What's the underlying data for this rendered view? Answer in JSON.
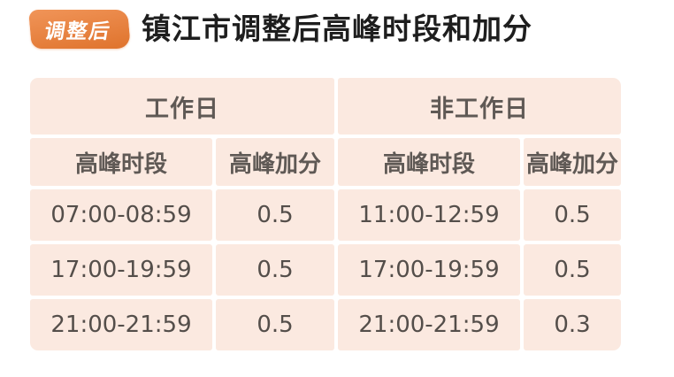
{
  "header": {
    "badge_label": "调整后",
    "title": "镇江市调整后高峰时段和加分"
  },
  "chart_data": {
    "type": "table",
    "title": "镇江市调整后高峰时段和加分",
    "badge": "调整后",
    "column_groups": [
      {
        "label": "工作日",
        "span": 2
      },
      {
        "label": "非工作日",
        "span": 2
      }
    ],
    "columns": [
      "高峰时段",
      "高峰加分",
      "高峰时段",
      "高峰加分"
    ],
    "rows": [
      [
        "07:00-08:59",
        "0.5",
        "11:00-12:59",
        "0.5"
      ],
      [
        "17:00-19:59",
        "0.5",
        "17:00-19:59",
        "0.5"
      ],
      [
        "21:00-21:59",
        "0.5",
        "21:00-21:59",
        "0.3"
      ]
    ],
    "layout_hints": {
      "grid": "off",
      "cell_separator": "thin white gaps",
      "header_merged": true
    }
  },
  "colors": {
    "accent_orange": "#ed7a2f",
    "badge_text": "#ffffff",
    "title_text": "#1e1e1e",
    "cell_bg": "#fbe9e0",
    "header_text": "#5f5955",
    "cell_text": "#544e4a",
    "page_bg": "#ffffff"
  }
}
